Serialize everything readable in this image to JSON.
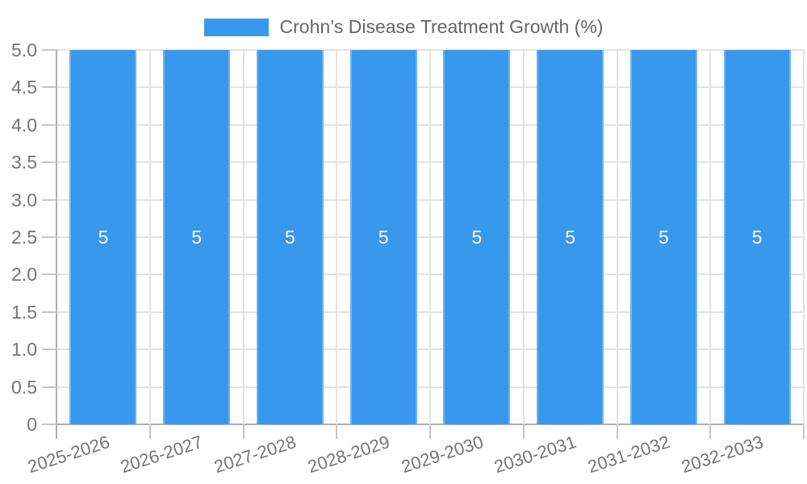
{
  "legend": {
    "label": "Crohn’s Disease Treatment Growth (%)",
    "swatch_icon": "legend-swatch"
  },
  "chart_data": {
    "type": "bar",
    "title": "Crohn’s Disease Treatment Growth (%)",
    "categories": [
      "2025-2026",
      "2026-2027",
      "2027-2028",
      "2028-2029",
      "2029-2030",
      "2030-2031",
      "2031-2032",
      "2032-2033"
    ],
    "series": [
      {
        "name": "Crohn’s Disease Treatment Growth (%)",
        "values": [
          5,
          5,
          5,
          5,
          5,
          5,
          5,
          5
        ]
      }
    ],
    "bar_value_labels": [
      "5",
      "5",
      "5",
      "5",
      "5",
      "5",
      "5",
      "5"
    ],
    "xlabel": "",
    "ylabel": "",
    "ylim": [
      0,
      5
    ],
    "y_tick_labels": [
      "0",
      "0.5",
      "1.0",
      "1.5",
      "2.0",
      "2.5",
      "3.0",
      "3.5",
      "4.0",
      "4.5",
      "5.0"
    ],
    "grid": true,
    "legend_position": "top",
    "x_label_rotation_deg": -18,
    "colors": {
      "bar_fill": "#3898ec",
      "bar_edge": "#6db4f1",
      "grid_line": "#e3e3e3",
      "axis_line": "#aeaeae",
      "tick_line": "#c6c6c6",
      "axis_text": "#757575",
      "bar_label_text": "#ffffff",
      "legend_text": "#666666"
    }
  }
}
